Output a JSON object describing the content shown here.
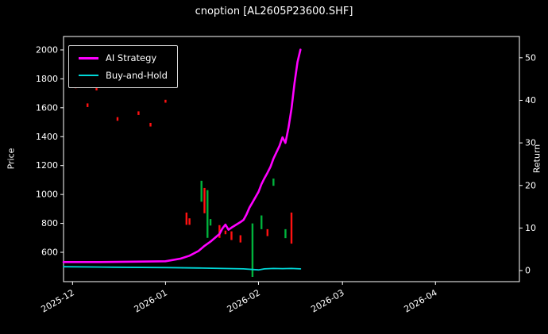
{
  "title": "cnoption [AL2605P23600.SHF]",
  "legend": {
    "ai": "AI Strategy",
    "bh": "Buy-and-Hold"
  },
  "axes": {
    "left_label": "Price",
    "right_label": "Return"
  },
  "colors": {
    "fg": "#ffffff",
    "bg": "#000000",
    "ai": "#ff00ff",
    "bh": "#00d8d8",
    "red": "#ff1111",
    "green": "#00b33c"
  },
  "chart_data": {
    "type": "line+candlestick",
    "title": "cnoption [AL2605P23600.SHF]",
    "x_domain": [
      "2025-11-28",
      "2026-04-29"
    ],
    "x_ticks": [
      {
        "date": "2025-12-01",
        "label": "2025-12"
      },
      {
        "date": "2026-01-01",
        "label": "2026-01"
      },
      {
        "date": "2026-02-01",
        "label": "2026-02"
      },
      {
        "date": "2026-03-01",
        "label": "2026-03"
      },
      {
        "date": "2026-04-01",
        "label": "2026-04"
      }
    ],
    "left_axis": {
      "label": "Price",
      "range": [
        397,
        2093
      ],
      "ticks": [
        600,
        800,
        1000,
        1200,
        1400,
        1600,
        1800,
        2000
      ]
    },
    "right_axis": {
      "label": "Return",
      "range": [
        -2.6,
        55.0
      ],
      "ticks": [
        0,
        10,
        20,
        30,
        40,
        50
      ]
    },
    "legend_position": "upper-left",
    "grid": false,
    "series": [
      {
        "name": "AI Strategy",
        "axis": "right",
        "color_key": "ai",
        "width": 2.6,
        "points": [
          [
            "2025-11-28",
            2.0
          ],
          [
            "2025-12-10",
            2.0
          ],
          [
            "2025-12-22",
            2.1
          ],
          [
            "2026-01-01",
            2.2
          ],
          [
            "2026-01-06",
            2.8
          ],
          [
            "2026-01-09",
            3.5
          ],
          [
            "2026-01-12",
            4.6
          ],
          [
            "2026-01-14",
            5.8
          ],
          [
            "2026-01-16",
            6.8
          ],
          [
            "2026-01-19",
            8.6
          ],
          [
            "2026-01-20",
            9.9
          ],
          [
            "2026-01-21",
            10.8
          ],
          [
            "2026-01-22",
            9.6
          ],
          [
            "2026-01-23",
            10.1
          ],
          [
            "2026-01-26",
            11.4
          ],
          [
            "2026-01-27",
            11.9
          ],
          [
            "2026-01-28",
            13.2
          ],
          [
            "2026-01-29",
            14.8
          ],
          [
            "2026-01-30",
            16.0
          ],
          [
            "2026-02-01",
            18.5
          ],
          [
            "2026-02-02",
            20.3
          ],
          [
            "2026-02-03",
            21.7
          ],
          [
            "2026-02-04",
            23.0
          ],
          [
            "2026-02-05",
            24.4
          ],
          [
            "2026-02-06",
            26.3
          ],
          [
            "2026-02-07",
            27.8
          ],
          [
            "2026-02-08",
            29.3
          ],
          [
            "2026-02-09",
            31.3
          ],
          [
            "2026-02-10",
            30.0
          ],
          [
            "2026-02-11",
            33.5
          ],
          [
            "2026-02-12",
            38.0
          ],
          [
            "2026-02-13",
            44.0
          ],
          [
            "2026-02-14",
            49.0
          ],
          [
            "2026-02-15",
            51.9
          ]
        ]
      },
      {
        "name": "Buy-and-Hold",
        "axis": "right",
        "color_key": "bh",
        "width": 1.8,
        "points": [
          [
            "2025-11-28",
            0.9
          ],
          [
            "2025-12-15",
            0.8
          ],
          [
            "2026-01-02",
            0.7
          ],
          [
            "2026-01-12",
            0.6
          ],
          [
            "2026-01-20",
            0.5
          ],
          [
            "2026-01-27",
            0.4
          ],
          [
            "2026-02-01",
            0.15
          ],
          [
            "2026-02-03",
            0.4
          ],
          [
            "2026-02-06",
            0.5
          ],
          [
            "2026-02-09",
            0.45
          ],
          [
            "2026-02-12",
            0.5
          ],
          [
            "2026-02-15",
            0.4
          ]
        ]
      }
    ],
    "candles": [
      {
        "date": "2025-12-02",
        "low": 1735,
        "high": 1760,
        "color": "red"
      },
      {
        "date": "2025-12-06",
        "low": 1605,
        "high": 1630,
        "color": "red"
      },
      {
        "date": "2025-12-09",
        "low": 1720,
        "high": 1745,
        "color": "red"
      },
      {
        "date": "2025-12-16",
        "low": 1510,
        "high": 1535,
        "color": "red"
      },
      {
        "date": "2025-12-23",
        "low": 1550,
        "high": 1575,
        "color": "red"
      },
      {
        "date": "2025-12-27",
        "low": 1470,
        "high": 1495,
        "color": "red"
      },
      {
        "date": "2026-01-01",
        "low": 1635,
        "high": 1655,
        "color": "red"
      },
      {
        "date": "2026-01-08",
        "low": 790,
        "high": 875,
        "color": "red"
      },
      {
        "date": "2026-01-09",
        "low": 790,
        "high": 835,
        "color": "red"
      },
      {
        "date": "2026-01-13",
        "low": 950,
        "high": 1095,
        "color": "green"
      },
      {
        "date": "2026-01-14",
        "low": 870,
        "high": 1045,
        "color": "red"
      },
      {
        "date": "2026-01-15",
        "low": 700,
        "high": 1030,
        "color": "green"
      },
      {
        "date": "2026-01-16",
        "low": 785,
        "high": 830,
        "color": "green"
      },
      {
        "date": "2026-01-19",
        "low": 700,
        "high": 788,
        "color": "red"
      },
      {
        "date": "2026-01-21",
        "low": 725,
        "high": 750,
        "color": "red"
      },
      {
        "date": "2026-01-23",
        "low": 685,
        "high": 745,
        "color": "red"
      },
      {
        "date": "2026-01-26",
        "low": 668,
        "high": 718,
        "color": "red"
      },
      {
        "date": "2026-01-30",
        "low": 430,
        "high": 800,
        "color": "green"
      },
      {
        "date": "2026-02-02",
        "low": 760,
        "high": 855,
        "color": "green"
      },
      {
        "date": "2026-02-04",
        "low": 712,
        "high": 760,
        "color": "red"
      },
      {
        "date": "2026-02-06",
        "low": 1060,
        "high": 1110,
        "color": "green"
      },
      {
        "date": "2026-02-10",
        "low": 698,
        "high": 760,
        "color": "green"
      },
      {
        "date": "2026-02-12",
        "low": 660,
        "high": 875,
        "color": "red"
      }
    ]
  }
}
